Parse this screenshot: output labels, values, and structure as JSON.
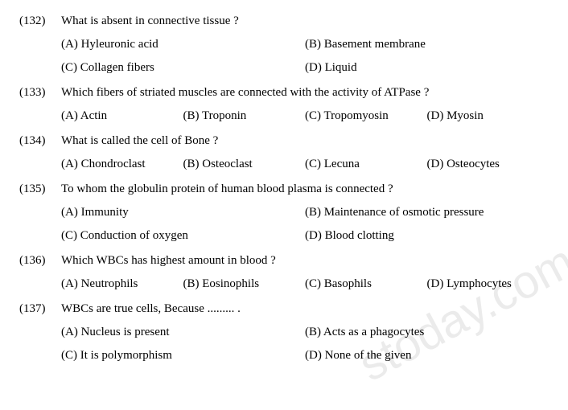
{
  "watermark": "stoday.com",
  "questions": [
    {
      "num": "(132)",
      "text": "What is absent in connective tissue ?",
      "layout": "two",
      "options": [
        {
          "label": "(A) Hyleuronic acid"
        },
        {
          "label": "(B) Basement membrane"
        },
        {
          "label": "(C) Collagen fibers"
        },
        {
          "label": "(D) Liquid"
        }
      ]
    },
    {
      "num": "(133)",
      "text": "Which fibers of striated muscles are connected with the activity of ATPase ?",
      "layout": "four",
      "options": [
        {
          "label": "(A) Actin"
        },
        {
          "label": "(B) Troponin"
        },
        {
          "label": "(C) Tropomyosin"
        },
        {
          "label": "(D) Myosin"
        }
      ]
    },
    {
      "num": "(134)",
      "text": "What is called the cell of Bone ?",
      "layout": "four",
      "options": [
        {
          "label": "(A) Chondroclast"
        },
        {
          "label": "(B) Osteoclast"
        },
        {
          "label": "(C) Lecuna"
        },
        {
          "label": "(D) Osteocytes"
        }
      ]
    },
    {
      "num": "(135)",
      "text": "To whom the globulin protein of human blood plasma is connected ?",
      "layout": "two",
      "options": [
        {
          "label": "(A) Immunity"
        },
        {
          "label": "(B) Maintenance of osmotic pressure"
        },
        {
          "label": "(C) Conduction of oxygen"
        },
        {
          "label": "(D) Blood clotting"
        }
      ]
    },
    {
      "num": "(136)",
      "text": "Which WBCs has highest amount in blood ?",
      "layout": "four",
      "options": [
        {
          "label": "(A) Neutrophils"
        },
        {
          "label": "(B) Eosinophils"
        },
        {
          "label": "(C) Basophils"
        },
        {
          "label": "(D) Lymphocytes"
        }
      ]
    },
    {
      "num": "(137)",
      "text": "WBCs are true cells, Because ......... .",
      "layout": "two",
      "options": [
        {
          "label": "(A) Nucleus is present"
        },
        {
          "label": "(B) Acts as a phagocytes"
        },
        {
          "label": "(C) It is polymorphism"
        },
        {
          "label": "(D) None of the given"
        }
      ]
    }
  ]
}
